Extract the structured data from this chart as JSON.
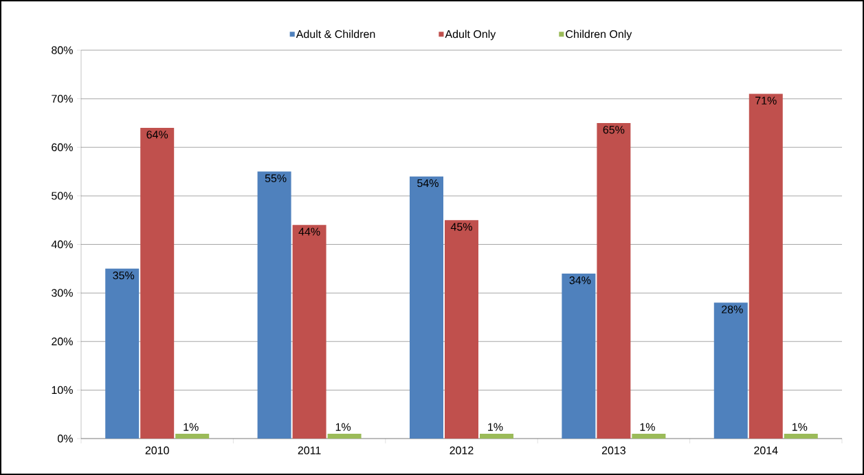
{
  "chart_data": {
    "type": "bar",
    "categories": [
      "2010",
      "2011",
      "2012",
      "2013",
      "2014"
    ],
    "series": [
      {
        "name": "Adult & Children",
        "color": "#4f81bd",
        "values": [
          35,
          55,
          54,
          34,
          28
        ],
        "value_labels": [
          "35%",
          "55%",
          "54%",
          "34%",
          "28%"
        ]
      },
      {
        "name": "Adult Only",
        "color": "#c0504d",
        "values": [
          64,
          44,
          45,
          65,
          71
        ],
        "value_labels": [
          "64%",
          "44%",
          "45%",
          "65%",
          "71%"
        ]
      },
      {
        "name": "Children Only",
        "color": "#9bbb59",
        "values": [
          1,
          1,
          1,
          1,
          1
        ],
        "value_labels": [
          "1%",
          "1%",
          "1%",
          "1%",
          "1%"
        ]
      }
    ],
    "ylim": [
      0,
      80
    ],
    "yticks": [
      {
        "value": 0,
        "label": "0%"
      },
      {
        "value": 10,
        "label": "10%"
      },
      {
        "value": 20,
        "label": "20%"
      },
      {
        "value": 30,
        "label": "30%"
      },
      {
        "value": 40,
        "label": "40%"
      },
      {
        "value": 50,
        "label": "50%"
      },
      {
        "value": 60,
        "label": "60%"
      },
      {
        "value": 70,
        "label": "70%"
      },
      {
        "value": 80,
        "label": "80%"
      }
    ],
    "grid": "y",
    "legend": "top"
  }
}
